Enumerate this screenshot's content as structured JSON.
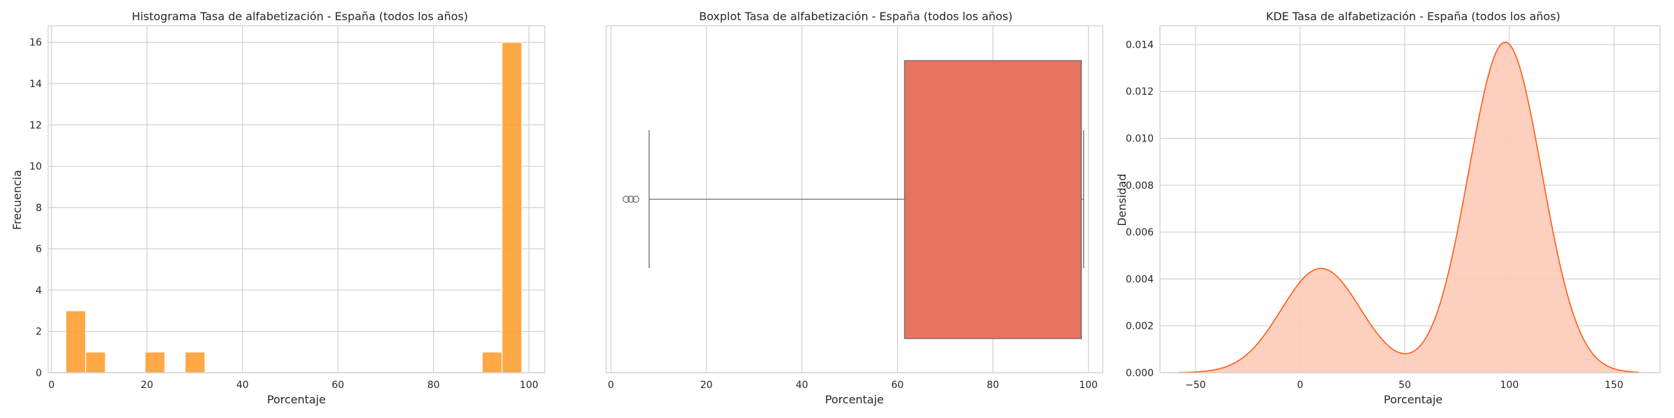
{
  "chart_data": [
    {
      "type": "histogram",
      "title": "Histograma Tasa de alfabetización - España (todos los años)",
      "xlabel": "Porcentaje",
      "ylabel": "Frecuencia",
      "xlim": [
        -0.7,
        103.3
      ],
      "ylim": [
        0,
        16.8
      ],
      "xticks": [
        0,
        20,
        40,
        60,
        80,
        100
      ],
      "yticks": [
        0,
        2,
        4,
        6,
        8,
        10,
        12,
        14,
        16
      ],
      "bin_width": 4.15,
      "bins": [
        {
          "x0": 3.0,
          "count": 3
        },
        {
          "x0": 7.15,
          "count": 1
        },
        {
          "x0": 19.6,
          "count": 1
        },
        {
          "x0": 28.0,
          "count": 1
        },
        {
          "x0": 90.2,
          "count": 1
        },
        {
          "x0": 94.35,
          "count": 16
        }
      ],
      "color": "#ff9f32",
      "grid": true
    },
    {
      "type": "box",
      "title": "Boxplot Tasa de alfabetización - España (todos los años)",
      "xlabel": "Porcentaje",
      "ylabel": "",
      "xlim": [
        -1.0,
        103.0
      ],
      "xticks": [
        0,
        20,
        40,
        60,
        80,
        100
      ],
      "whisker_low": 8.0,
      "q1": 61.5,
      "median": 98.5,
      "q3": 98.5,
      "whisker_high": 99.0,
      "outliers": [
        3.2,
        4.2,
        5.2
      ],
      "color": "#e8735e",
      "grid": true
    },
    {
      "type": "area",
      "title": "KDE Tasa de alfabetización - España (todos los años)",
      "xlabel": "Porcentaje",
      "ylabel": "Densidad",
      "xlim": [
        -67,
        172
      ],
      "ylim": [
        0,
        0.0148
      ],
      "xticks": [
        -50,
        0,
        50,
        100,
        150
      ],
      "yticks": [
        0.0,
        0.002,
        0.004,
        0.006,
        0.008,
        0.01,
        0.012,
        0.014
      ],
      "components": [
        {
          "mean": 10,
          "sd": 19,
          "peak": 0.00445
        },
        {
          "mean": 98,
          "sd": 17.5,
          "peak": 0.0141
        }
      ],
      "x_range": [
        -58,
        162
      ],
      "color": "#ff5a14",
      "fill": "#fdcab7",
      "grid": true
    }
  ]
}
